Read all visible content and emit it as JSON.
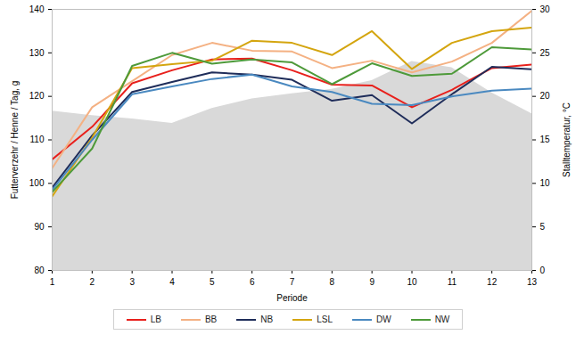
{
  "chart_data": {
    "type": "line",
    "xlabel": "Periode",
    "ylabel": "Futterverzehr / Henne / Tag, g",
    "y2label": "Stalltemperatur, °C",
    "x": [
      1,
      2,
      3,
      4,
      5,
      6,
      7,
      8,
      9,
      10,
      11,
      12,
      13
    ],
    "xlim": [
      1,
      13
    ],
    "xticks": [
      1,
      2,
      3,
      4,
      5,
      6,
      7,
      8,
      9,
      10,
      11,
      12,
      13
    ],
    "ylim": [
      80,
      140
    ],
    "yticks": [
      80,
      90,
      100,
      110,
      120,
      130,
      140
    ],
    "y2lim": [
      0,
      30
    ],
    "y2ticks": [
      0,
      5,
      10,
      15,
      20,
      25,
      30
    ],
    "grid": false,
    "legend": "bottom",
    "series": [
      {
        "type": "area",
        "axis": "y2",
        "color": "#d9d9d9",
        "values": [
          18.3,
          17.8,
          17.4,
          16.9,
          18.6,
          19.7,
          20.3,
          20.8,
          21.8,
          24.0,
          23.3,
          20.4,
          18.0
        ]
      },
      {
        "name": "LB",
        "color": "#e8201c",
        "values": [
          105.5,
          113,
          123,
          126,
          128.5,
          128.7,
          126,
          122.7,
          122.5,
          117.5,
          121.5,
          126.5,
          127.3
        ]
      },
      {
        "name": "BB",
        "color": "#f4b183",
        "values": [
          103.5,
          117.5,
          123.5,
          129.5,
          132.3,
          130.5,
          130.3,
          126.5,
          128.2,
          125.5,
          128,
          132.3,
          139.7
        ]
      },
      {
        "name": "NB",
        "color": "#1f2d5a",
        "values": [
          99,
          111,
          121,
          123.3,
          125.5,
          125,
          123.8,
          119,
          120.3,
          113.8,
          120.5,
          126.8,
          126.2
        ]
      },
      {
        "name": "LSL",
        "color": "#d4a50f",
        "values": [
          97,
          110.5,
          126.5,
          127.4,
          128.2,
          132.8,
          132.3,
          129.5,
          135,
          126.3,
          132.3,
          135,
          135.8
        ]
      },
      {
        "name": "DW",
        "color": "#4a89c0",
        "values": [
          98.5,
          110,
          120.5,
          122.3,
          124,
          125,
          122.3,
          121,
          118.3,
          118,
          120,
          121.3,
          121.8
        ]
      },
      {
        "name": "NW",
        "color": "#4e9a3a",
        "values": [
          98,
          108,
          127,
          130,
          127.5,
          128.5,
          127.8,
          122.8,
          127.6,
          124.7,
          125.2,
          131.3,
          130.8
        ]
      }
    ]
  }
}
